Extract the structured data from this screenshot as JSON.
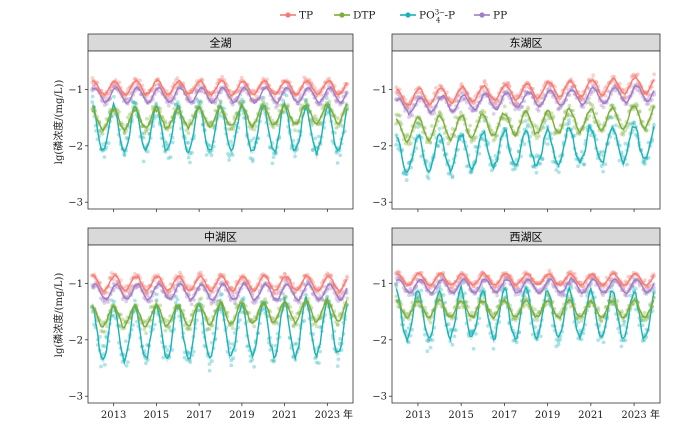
{
  "chart_data": {
    "type": "line",
    "legend": {
      "placement": "top-center",
      "entries": [
        {
          "label": "TP",
          "color": "#F47C74"
        },
        {
          "label": "DTP",
          "color": "#7BAE3C"
        },
        {
          "label_main": "PO",
          "label_sub": "4",
          "label_sup": "3−",
          "label_tail": "-P",
          "color": "#1CB3B6"
        },
        {
          "label": "PP",
          "color": "#A27CC4"
        }
      ]
    },
    "ylabel_prefix": "lg",
    "ylabel_rest": "(磷浓度/(mg/L))",
    "x_unit_label": "年",
    "x_ticks": [
      "2013",
      "2015",
      "2017",
      "2019",
      "2021",
      "2023"
    ],
    "x_tick_values": [
      2013,
      2015,
      2017,
      2019,
      2021,
      2023
    ],
    "xlim": [
      2011.8,
      2024.2
    ],
    "y_ticks": [
      "−1",
      "−2",
      "−3"
    ],
    "y_tick_values": [
      -1,
      -2,
      -3
    ],
    "ylim": [
      -3.12,
      -0.32
    ],
    "grid": false,
    "panels": [
      {
        "title": "全湖",
        "series": [
          {
            "key": "TP",
            "base": -0.97,
            "amp": 0.12,
            "phase": 0.0,
            "trend": 0.0,
            "noise": 0.12
          },
          {
            "key": "DTP",
            "base": -1.55,
            "amp": 0.17,
            "phase": 0.3,
            "trend": 0.01,
            "noise": 0.2
          },
          {
            "key": "PO4",
            "base": -1.75,
            "amp": 0.38,
            "phase": 0.3,
            "trend": 0.0,
            "noise": 0.35
          },
          {
            "key": "PP",
            "base": -1.1,
            "amp": 0.13,
            "phase": -0.4,
            "trend": 0.0,
            "noise": 0.12
          }
        ]
      },
      {
        "title": "东湖区",
        "series": [
          {
            "key": "TP",
            "base": -1.15,
            "amp": 0.14,
            "phase": 0.0,
            "trend": 0.02,
            "noise": 0.14
          },
          {
            "key": "DTP",
            "base": -1.72,
            "amp": 0.2,
            "phase": 0.3,
            "trend": 0.02,
            "noise": 0.22
          },
          {
            "key": "PO4",
            "base": -2.2,
            "amp": 0.3,
            "phase": 0.3,
            "trend": 0.02,
            "noise": 0.35
          },
          {
            "key": "PP",
            "base": -1.3,
            "amp": 0.14,
            "phase": -0.4,
            "trend": 0.02,
            "noise": 0.14
          }
        ]
      },
      {
        "title": "中湖区",
        "series": [
          {
            "key": "TP",
            "base": -1.0,
            "amp": 0.13,
            "phase": 0.0,
            "trend": 0.0,
            "noise": 0.12
          },
          {
            "key": "DTP",
            "base": -1.6,
            "amp": 0.18,
            "phase": 0.3,
            "trend": 0.01,
            "noise": 0.2
          },
          {
            "key": "PO4",
            "base": -1.95,
            "amp": 0.45,
            "phase": 0.3,
            "trend": 0.01,
            "noise": 0.4
          },
          {
            "key": "PP",
            "base": -1.15,
            "amp": 0.14,
            "phase": -0.4,
            "trend": 0.0,
            "noise": 0.13
          }
        ]
      },
      {
        "title": "西湖区",
        "series": [
          {
            "key": "TP",
            "base": -0.93,
            "amp": 0.1,
            "phase": 0.0,
            "trend": 0.0,
            "noise": 0.1
          },
          {
            "key": "DTP",
            "base": -1.45,
            "amp": 0.15,
            "phase": 0.3,
            "trend": 0.0,
            "noise": 0.18
          },
          {
            "key": "PO4",
            "base": -1.6,
            "amp": 0.4,
            "phase": 0.3,
            "trend": 0.0,
            "noise": 0.38
          },
          {
            "key": "PP",
            "base": -1.05,
            "amp": 0.12,
            "phase": -0.4,
            "trend": 0.0,
            "noise": 0.11
          }
        ]
      }
    ],
    "series_colors": {
      "TP": "#F47C74",
      "DTP": "#7BAE3C",
      "PO4": "#1CB3B6",
      "PP": "#A27CC4"
    },
    "strip_color": "#d9d9d9"
  }
}
